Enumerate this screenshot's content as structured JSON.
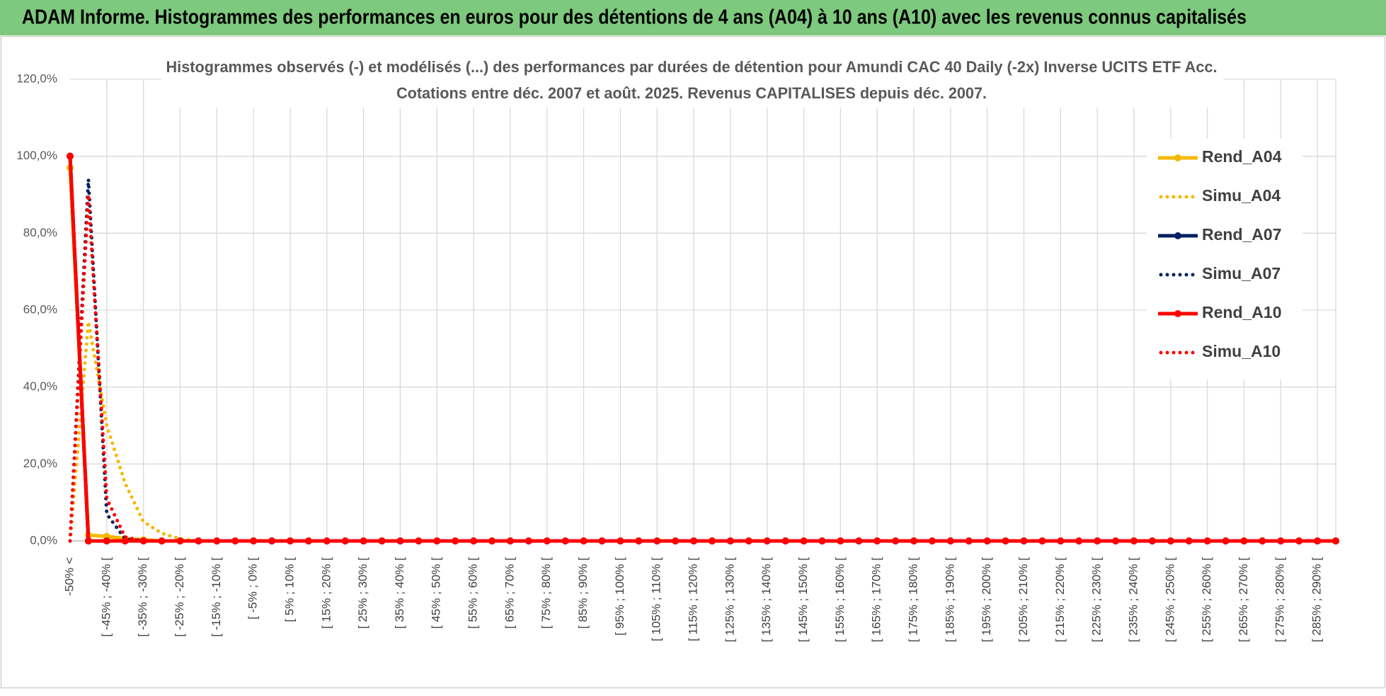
{
  "header": {
    "title": "ADAM Informe. Histogrammes des performances en euros pour des détentions de 4 ans (A04) à 10 ans (A10) avec les revenus connus capitalisés"
  },
  "chart_data": {
    "type": "line",
    "title": "Histogrammes observés (-) et modélisés (...) des performances par durées de détention pour Amundi CAC 40 Daily (-2x) Inverse UCITS ETF Acc.",
    "subtitle": "Cotations entre déc. 2007 et août. 2025. Revenus CAPITALISES depuis déc. 2007.",
    "categories": [
      "-50% <",
      null,
      "[ -45% ; -40% [",
      null,
      "[ -35% ; -30% [",
      null,
      "[ -25% ; -20% [",
      null,
      "[ -15% ; -10% [",
      null,
      "[ -5% ; 0% [",
      null,
      "[ 5% ; 10% [",
      null,
      "[ 15% ; 20% [",
      null,
      "[ 25% ; 30% [",
      null,
      "[ 35% ; 40% [",
      null,
      "[ 45% ; 50% [",
      null,
      "[ 55% ; 60% [",
      null,
      "[ 65% ; 70% [",
      null,
      "[ 75% ; 80% [",
      null,
      "[ 85% ; 90% [",
      null,
      "[ 95% ; 100% [",
      null,
      "[ 105% ; 110% [",
      null,
      "[ 115% ; 120% [",
      null,
      "[ 125% ; 130% [",
      null,
      "[ 135% ; 140% [",
      null,
      "[ 145% ; 150% [",
      null,
      "[ 155% ; 160% [",
      null,
      "[ 165% ; 170% [",
      null,
      "[ 175% ; 180% [",
      null,
      "[ 185% ; 190% [",
      null,
      "[ 195% ; 200% [",
      null,
      "[ 205% ; 210% [",
      null,
      "[ 215% ; 220% [",
      null,
      "[ 225% ; 230% [",
      null,
      "[ 235% ; 240% [",
      null,
      "[ 245% ; 250% [",
      null,
      "[ 255% ; 260% [",
      null,
      "[ 265% ; 270% [",
      null,
      "[ 275% ; 280% [",
      null,
      "[ 285% ; 290% [",
      null
    ],
    "series": [
      {
        "name": "Rend_A04",
        "color": "#f5b800",
        "dash": "solid",
        "markers": true,
        "values": [
          97,
          1.5,
          1.2,
          0.6,
          0.3,
          0,
          0,
          0,
          0,
          0,
          0,
          0,
          0,
          0,
          0,
          0,
          0,
          0,
          0,
          0,
          0,
          0,
          0,
          0,
          0,
          0,
          0,
          0,
          0,
          0,
          0,
          0,
          0,
          0,
          0,
          0,
          0,
          0,
          0,
          0,
          0,
          0,
          0,
          0,
          0,
          0,
          0,
          0,
          0,
          0,
          0,
          0,
          0,
          0,
          0,
          0,
          0,
          0,
          0,
          0,
          0,
          0,
          0,
          0,
          0,
          0,
          0,
          0,
          0,
          0
        ]
      },
      {
        "name": "Simu_A04",
        "color": "#f5b800",
        "dash": "dotted",
        "markers": false,
        "values": [
          0,
          57,
          30,
          15,
          5,
          2,
          0.5,
          0,
          0,
          0,
          0,
          0,
          0,
          0,
          0,
          0,
          0,
          0,
          0,
          0,
          0,
          0,
          0,
          0,
          0,
          0,
          0,
          0,
          0,
          0,
          0,
          0,
          0,
          0,
          0,
          0,
          0,
          0,
          0,
          0,
          0,
          0,
          0,
          0,
          0,
          0,
          0,
          0,
          0,
          0,
          0,
          0,
          0,
          0,
          0,
          0,
          0,
          0,
          0,
          0,
          0,
          0,
          0,
          0,
          0,
          0,
          0,
          0,
          0,
          0
        ]
      },
      {
        "name": "Rend_A07",
        "color": "#002060",
        "dash": "solid",
        "markers": true,
        "values": [
          100,
          0,
          0,
          0,
          0,
          0,
          0,
          0,
          0,
          0,
          0,
          0,
          0,
          0,
          0,
          0,
          0,
          0,
          0,
          0,
          0,
          0,
          0,
          0,
          0,
          0,
          0,
          0,
          0,
          0,
          0,
          0,
          0,
          0,
          0,
          0,
          0,
          0,
          0,
          0,
          0,
          0,
          0,
          0,
          0,
          0,
          0,
          0,
          0,
          0,
          0,
          0,
          0,
          0,
          0,
          0,
          0,
          0,
          0,
          0,
          0,
          0,
          0,
          0,
          0,
          0,
          0,
          0,
          0,
          0
        ]
      },
      {
        "name": "Simu_A07",
        "color": "#002060",
        "dash": "dotted",
        "markers": false,
        "values": [
          0,
          94,
          7,
          0.5,
          0,
          0,
          0,
          0,
          0,
          0,
          0,
          0,
          0,
          0,
          0,
          0,
          0,
          0,
          0,
          0,
          0,
          0,
          0,
          0,
          0,
          0,
          0,
          0,
          0,
          0,
          0,
          0,
          0,
          0,
          0,
          0,
          0,
          0,
          0,
          0,
          0,
          0,
          0,
          0,
          0,
          0,
          0,
          0,
          0,
          0,
          0,
          0,
          0,
          0,
          0,
          0,
          0,
          0,
          0,
          0,
          0,
          0,
          0,
          0,
          0,
          0,
          0,
          0,
          0,
          0
        ]
      },
      {
        "name": "Rend_A10",
        "color": "#ff0000",
        "dash": "solid",
        "markers": true,
        "values": [
          100,
          0,
          0,
          0,
          0,
          0,
          0,
          0,
          0,
          0,
          0,
          0,
          0,
          0,
          0,
          0,
          0,
          0,
          0,
          0,
          0,
          0,
          0,
          0,
          0,
          0,
          0,
          0,
          0,
          0,
          0,
          0,
          0,
          0,
          0,
          0,
          0,
          0,
          0,
          0,
          0,
          0,
          0,
          0,
          0,
          0,
          0,
          0,
          0,
          0,
          0,
          0,
          0,
          0,
          0,
          0,
          0,
          0,
          0,
          0,
          0,
          0,
          0,
          0,
          0,
          0,
          0,
          0,
          0,
          0
        ]
      },
      {
        "name": "Simu_A10",
        "color": "#ff0000",
        "dash": "dotted",
        "markers": false,
        "values": [
          0,
          90,
          11,
          1,
          0,
          0,
          0,
          0,
          0,
          0,
          0,
          0,
          0,
          0,
          0,
          0,
          0,
          0,
          0,
          0,
          0,
          0,
          0,
          0,
          0,
          0,
          0,
          0,
          0,
          0,
          0,
          0,
          0,
          0,
          0,
          0,
          0,
          0,
          0,
          0,
          0,
          0,
          0,
          0,
          0,
          0,
          0,
          0,
          0,
          0,
          0,
          0,
          0,
          0,
          0,
          0,
          0,
          0,
          0,
          0,
          0,
          0,
          0,
          0,
          0,
          0,
          0,
          0,
          0,
          0
        ]
      }
    ],
    "ylim": [
      0,
      120
    ],
    "yticks": [
      {
        "value": 0,
        "label": "0,0%"
      },
      {
        "value": 20,
        "label": "20,0%"
      },
      {
        "value": 40,
        "label": "40,0%"
      },
      {
        "value": 60,
        "label": "60,0%"
      },
      {
        "value": 80,
        "label": "80,0%"
      },
      {
        "value": 100,
        "label": "100,0%"
      },
      {
        "value": 120,
        "label": "120,0%"
      }
    ],
    "grid": true,
    "legend": "right"
  }
}
